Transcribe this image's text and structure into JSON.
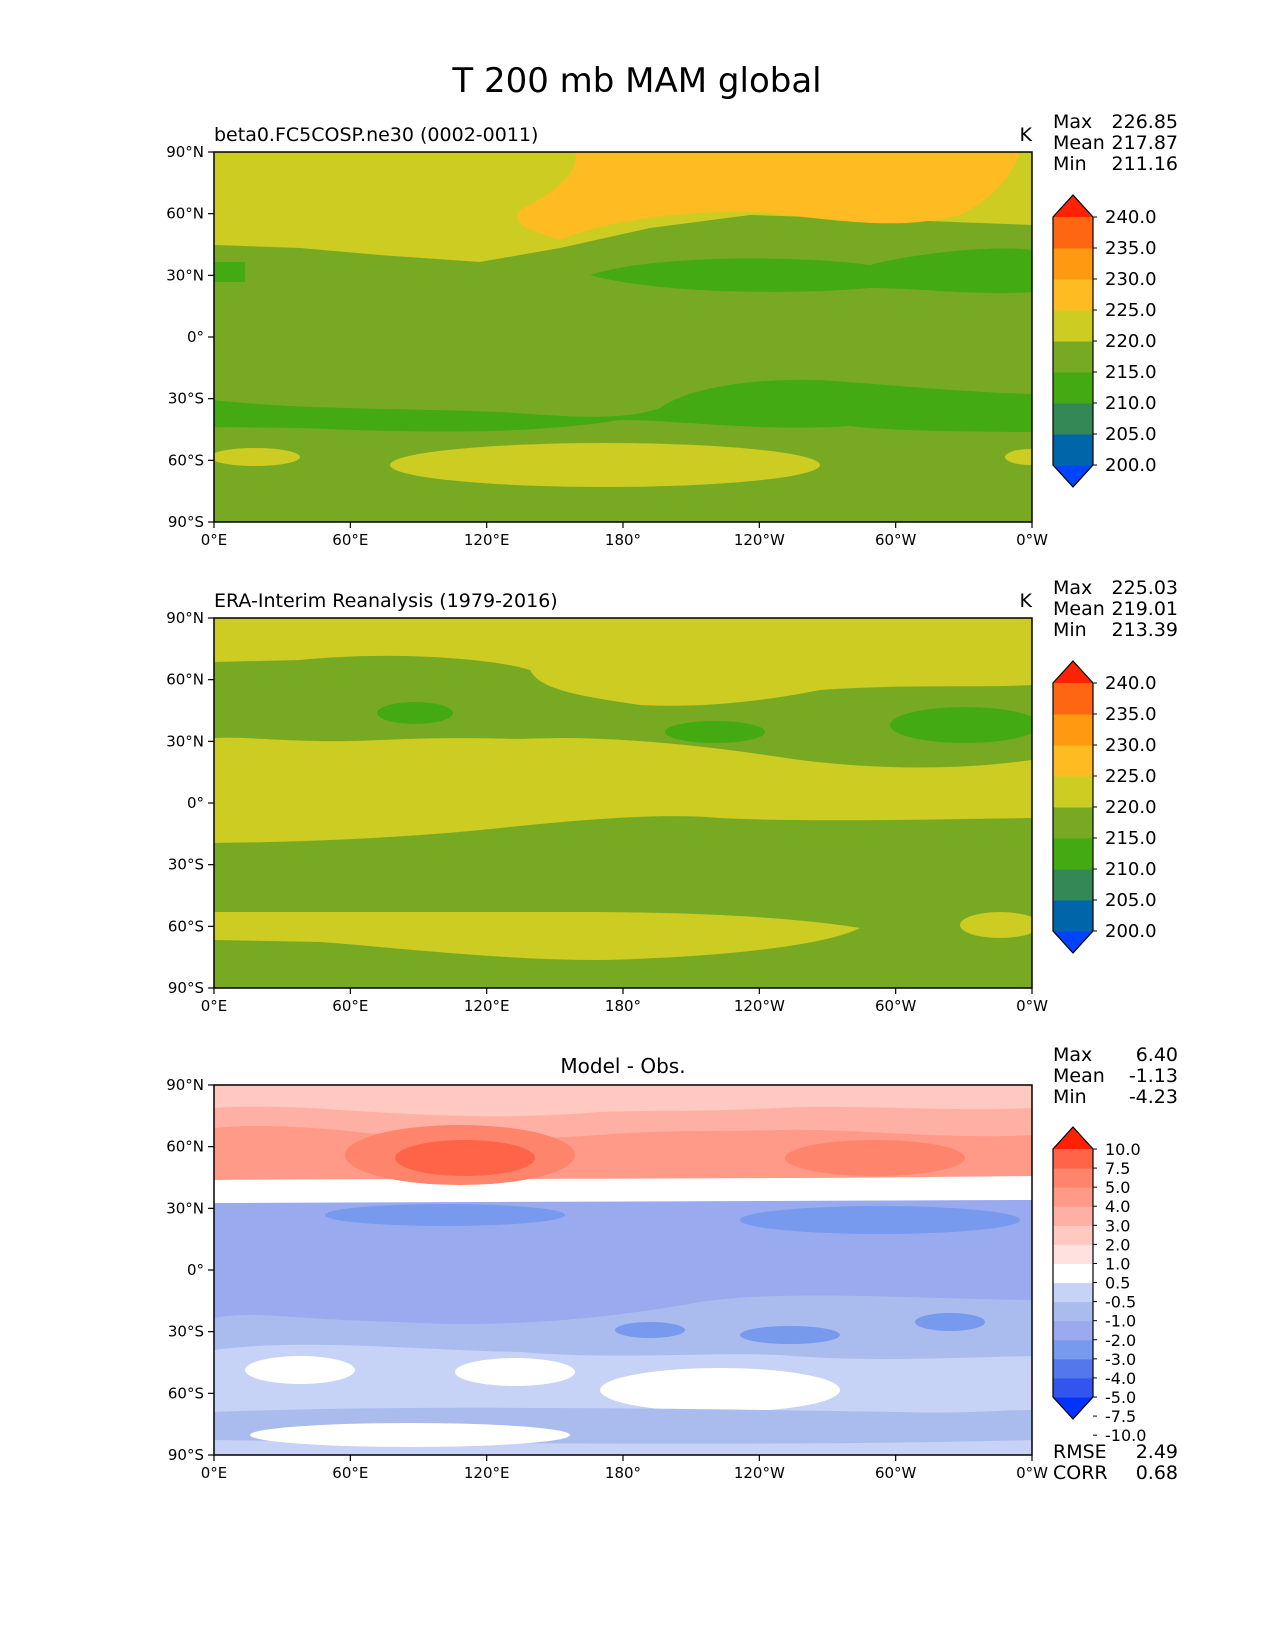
{
  "page": {
    "title": "T 200 mb MAM global"
  },
  "map_axes": {
    "lat_ticks": [
      "90°N",
      "60°N",
      "30°N",
      "0°",
      "30°S",
      "60°S",
      "90°S"
    ],
    "lon_ticks": [
      "0°E",
      "60°E",
      "120°E",
      "180°",
      "120°W",
      "60°W",
      "0°W"
    ],
    "lon_range": [
      0,
      360
    ],
    "lat_range": [
      -90,
      90
    ]
  },
  "colors": {
    "abs_levels": [
      "#0044ff",
      "#0066aa",
      "#338855",
      "#44aa11",
      "#77aa22",
      "#cccc22",
      "#ffbb22",
      "#ff9911",
      "#ff6611",
      "#ff2200"
    ],
    "diff_levels": [
      "#0033ff",
      "#3355ee",
      "#5577ee",
      "#7799ee",
      "#99aaee",
      "#aabbee",
      "#c6d2f6",
      "#ffffff",
      "#ffe2e0",
      "#ffc8c0",
      "#ffb0a4",
      "#ff9a88",
      "#ff846c",
      "#ff6448",
      "#ff2200"
    ]
  },
  "chart_data": [
    {
      "type": "heatmap",
      "title": "beta0.FC5COSP.ne30 (0002-0011)",
      "units": "K",
      "stats": {
        "max_label": "Max",
        "max": "226.85",
        "mean_label": "Mean",
        "mean": "217.87",
        "min_label": "Min",
        "min": "211.16"
      },
      "colorbar": {
        "labels": [
          "240.0",
          "235.0",
          "230.0",
          "225.0",
          "220.0",
          "215.0",
          "210.0",
          "205.0",
          "200.0"
        ],
        "extend": "both"
      }
    },
    {
      "type": "heatmap",
      "title": "ERA-Interim Reanalysis (1979-2016)",
      "units": "K",
      "stats": {
        "max_label": "Max",
        "max": "225.03",
        "mean_label": "Mean",
        "mean": "219.01",
        "min_label": "Min",
        "min": "213.39"
      },
      "colorbar": {
        "labels": [
          "240.0",
          "235.0",
          "230.0",
          "225.0",
          "220.0",
          "215.0",
          "210.0",
          "205.0",
          "200.0"
        ],
        "extend": "both"
      }
    },
    {
      "type": "heatmap",
      "title": "Model - Obs.",
      "stats": {
        "max_label": "Max",
        "max": "6.40",
        "mean_label": "Mean",
        "mean": "-1.13",
        "min_label": "Min",
        "min": "-4.23"
      },
      "colorbar": {
        "labels": [
          "10.0",
          "7.5",
          "5.0",
          "4.0",
          "3.0",
          "2.0",
          "1.0",
          "0.5",
          "-0.5",
          "-1.0",
          "-2.0",
          "-3.0",
          "-4.0",
          "-5.0",
          "-7.5",
          "-10.0"
        ],
        "extend": "both"
      },
      "metrics": {
        "rmse_label": "RMSE",
        "rmse": "2.49",
        "corr_label": "CORR",
        "corr": "0.68"
      }
    }
  ]
}
